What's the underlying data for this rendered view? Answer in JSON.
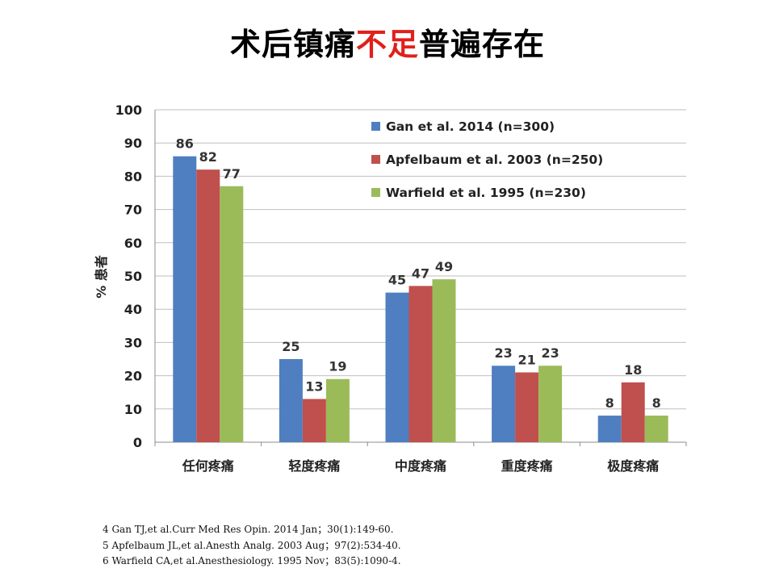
{
  "title": {
    "part1": "术后镇痛",
    "highlight": "不足",
    "part2": "普遍存在"
  },
  "colors": {
    "title_highlight": "#e0201b",
    "series": [
      "#4f7fc0",
      "#c0504d",
      "#9bbb59"
    ]
  },
  "chart_data": {
    "type": "bar",
    "categories": [
      "任何疼痛",
      "轻度疼痛",
      "中度疼痛",
      "重度疼痛",
      "极度疼痛"
    ],
    "series": [
      {
        "name": "Gan et al. 2014 (n=300)",
        "values": [
          86,
          25,
          45,
          23,
          8
        ]
      },
      {
        "name": "Apfelbaum et al. 2003 (n=250)",
        "values": [
          82,
          13,
          47,
          21,
          18
        ]
      },
      {
        "name": "Warfield et al. 1995 (n=230)",
        "values": [
          77,
          19,
          49,
          23,
          8
        ]
      }
    ],
    "ylabel": "% 患者",
    "ylim": [
      0,
      100
    ],
    "yticks": [
      0,
      10,
      20,
      30,
      40,
      50,
      60,
      70,
      80,
      90,
      100
    ],
    "grid": true,
    "legend_position": "top-right",
    "data_labels": true
  },
  "references": [
    "4 Gan TJ,et al.Curr Med Res Opin. 2014 Jan；30(1):149-60.",
    "5 Apfelbaum JL,et al.Anesth Analg. 2003 Aug；97(2):534-40.",
    "6 Warfield CA,et al.Anesthesiology. 1995 Nov；83(5):1090-4."
  ]
}
